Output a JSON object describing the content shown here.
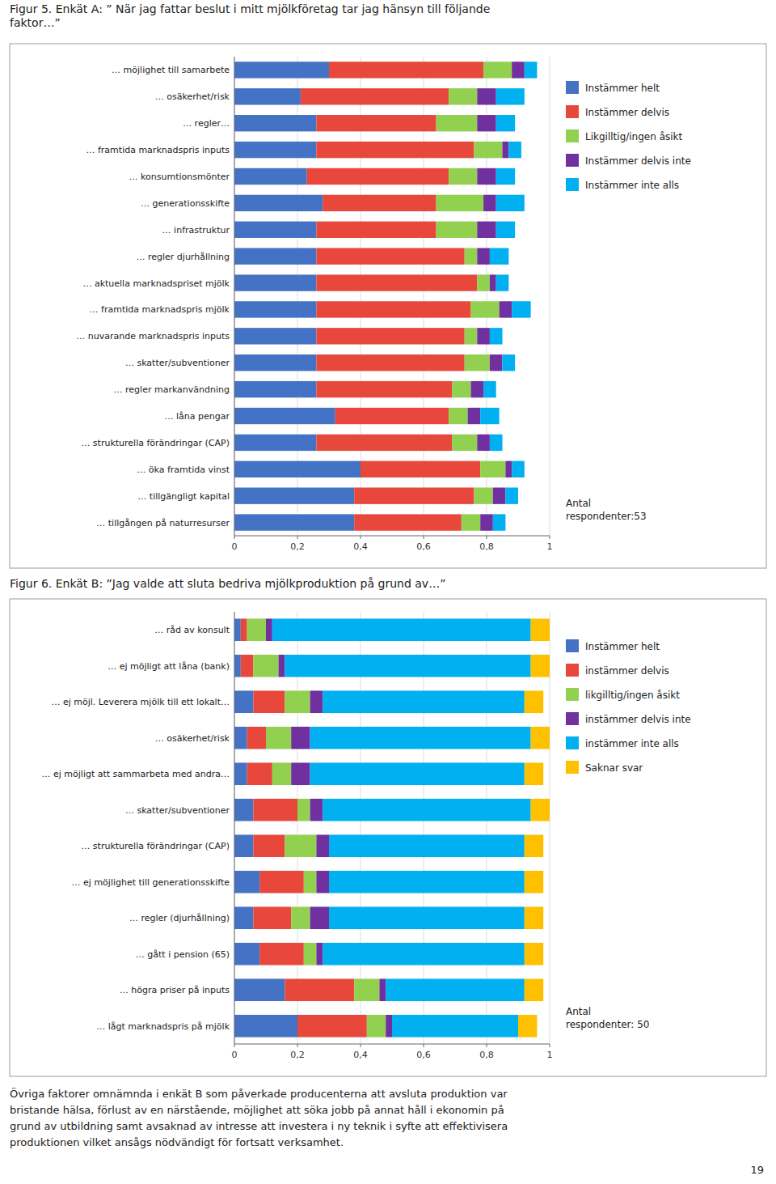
{
  "chart_data": [
    {
      "type": "bar",
      "title": "Figur 5. Enkät A: ” När jag fattar beslut i mitt mjölkföretag tar jag hänsyn till följande\nfaktor…”",
      "orientation": "horizontal",
      "stacked": true,
      "grid": true,
      "legend": "right",
      "categories": [
        "… möjlighet till samarbete",
        "… osäkerhet/risk",
        "… regler…",
        "… framtida marknadspris inputs",
        "… konsumtionsmönter",
        "… generationsskifte",
        "… infrastruktur",
        "… regler djurhållning",
        "… aktuella marknadspriset mjölk",
        "… framtida marknadspris mjölk",
        "… nuvarande marknadspris inputs",
        "… skatter/subventioner",
        "… regler markanvändning",
        "… låna pengar",
        "… strukturella förändringar (CAP)",
        "… öka framtida vinst",
        "… tillgängligt kapital",
        "… tillgången på naturresurser"
      ],
      "series": [
        {
          "name": "Instämmer helt",
          "color": "#4472C4",
          "values": [
            0.3,
            0.21,
            0.26,
            0.26,
            0.23,
            0.28,
            0.26,
            0.26,
            0.26,
            0.26,
            0.26,
            0.26,
            0.26,
            0.32,
            0.26,
            0.4,
            0.38,
            0.38
          ]
        },
        {
          "name": "Instämmer delvis",
          "color": "#E8483C",
          "values": [
            0.49,
            0.47,
            0.38,
            0.5,
            0.45,
            0.36,
            0.38,
            0.47,
            0.51,
            0.49,
            0.47,
            0.47,
            0.43,
            0.36,
            0.43,
            0.38,
            0.38,
            0.34
          ]
        },
        {
          "name": "Likgilltig/ingen åsikt",
          "color": "#92D050",
          "values": [
            0.09,
            0.09,
            0.13,
            0.09,
            0.09,
            0.15,
            0.13,
            0.04,
            0.04,
            0.09,
            0.04,
            0.08,
            0.06,
            0.06,
            0.08,
            0.08,
            0.06,
            0.06
          ]
        },
        {
          "name": "Instämmer delvis inte",
          "color": "#7030A0",
          "values": [
            0.04,
            0.06,
            0.06,
            0.02,
            0.06,
            0.04,
            0.06,
            0.04,
            0.02,
            0.04,
            0.04,
            0.04,
            0.04,
            0.04,
            0.04,
            0.02,
            0.04,
            0.04
          ]
        },
        {
          "name": "Instämmer inte alls",
          "color": "#00B0F0",
          "values": [
            0.04,
            0.09,
            0.06,
            0.04,
            0.06,
            0.09,
            0.06,
            0.06,
            0.04,
            0.06,
            0.04,
            0.04,
            0.04,
            0.06,
            0.04,
            0.04,
            0.04,
            0.04
          ]
        }
      ],
      "xlim": [
        0,
        1
      ],
      "xticks": [
        0,
        {
          "value": 0.2,
          "label": "0,2"
        },
        {
          "value": 0.4,
          "label": "0,4"
        },
        {
          "value": 0.6,
          "label": "0,6"
        },
        {
          "value": 0.8,
          "label": "0,8"
        },
        1
      ],
      "annotations": [
        "Antal\nrespondenter:53"
      ]
    },
    {
      "type": "bar",
      "title": "Figur 6. Enkät B: ”Jag valde att sluta bedriva mjölkproduktion på grund av…”",
      "orientation": "horizontal",
      "stacked": true,
      "grid": true,
      "legend": "right",
      "categories": [
        "… råd av konsult",
        "… ej möjligt att låna (bank)",
        "… ej möjl. Leverera mjölk till ett lokalt…",
        "… osäkerhet/risk",
        "… ej möjligt att sammarbeta med andra…",
        "… skatter/subventioner",
        "… strukturella förändringar (CAP)",
        "… ej möjlighet till generationsskifte",
        "… regler (djurhållning)",
        "… gått i pension (65)",
        "… högra priser på inputs",
        "… lågt marknadspris på mjölk"
      ],
      "series": [
        {
          "name": "Instämmer helt",
          "color": "#4472C4",
          "values": [
            0.02,
            0.02,
            0.06,
            0.04,
            0.04,
            0.06,
            0.06,
            0.08,
            0.06,
            0.08,
            0.16,
            0.2
          ]
        },
        {
          "name": "instämmer delvis",
          "color": "#E8483C",
          "values": [
            0.02,
            0.04,
            0.1,
            0.06,
            0.08,
            0.14,
            0.1,
            0.14,
            0.12,
            0.14,
            0.22,
            0.22
          ]
        },
        {
          "name": "likgilltig/ingen åsikt",
          "color": "#92D050",
          "values": [
            0.06,
            0.08,
            0.08,
            0.08,
            0.06,
            0.04,
            0.1,
            0.04,
            0.06,
            0.04,
            0.08,
            0.06
          ]
        },
        {
          "name": "instämmer delvis inte",
          "color": "#7030A0",
          "values": [
            0.02,
            0.02,
            0.04,
            0.06,
            0.06,
            0.04,
            0.04,
            0.04,
            0.06,
            0.02,
            0.02,
            0.02
          ]
        },
        {
          "name": "instämmer inte alls",
          "color": "#00B0F0",
          "values": [
            0.82,
            0.78,
            0.64,
            0.7,
            0.68,
            0.66,
            0.62,
            0.62,
            0.62,
            0.64,
            0.44,
            0.4
          ]
        },
        {
          "name": "Saknar svar",
          "color": "#FFC000",
          "values": [
            0.06,
            0.06,
            0.06,
            0.06,
            0.06,
            0.06,
            0.06,
            0.06,
            0.06,
            0.06,
            0.06,
            0.06
          ]
        }
      ],
      "xlim": [
        0,
        1
      ],
      "xticks": [
        0,
        {
          "value": 0.2,
          "label": "0,2"
        },
        {
          "value": 0.4,
          "label": "0,4"
        },
        {
          "value": 0.6,
          "label": "0,6"
        },
        {
          "value": 0.8,
          "label": "0,8"
        },
        1
      ],
      "annotations": [
        "Antal\nrespondenter: 50"
      ]
    }
  ],
  "footer_text": "Övriga faktorer omnämnda i enkät B som påverkade producenterna att avsluta produktion var\nbristande hälsa, förlust av en närstående, möjlighet att söka jobb på annat håll i ekonomin på\ngrund av utbildning samt avsaknad av intresse att investera i ny teknik i syfte att effektivisera\nproduktionen vilket ansågs nödvändigt för fortsatt verksamhet.",
  "page_number": "19"
}
